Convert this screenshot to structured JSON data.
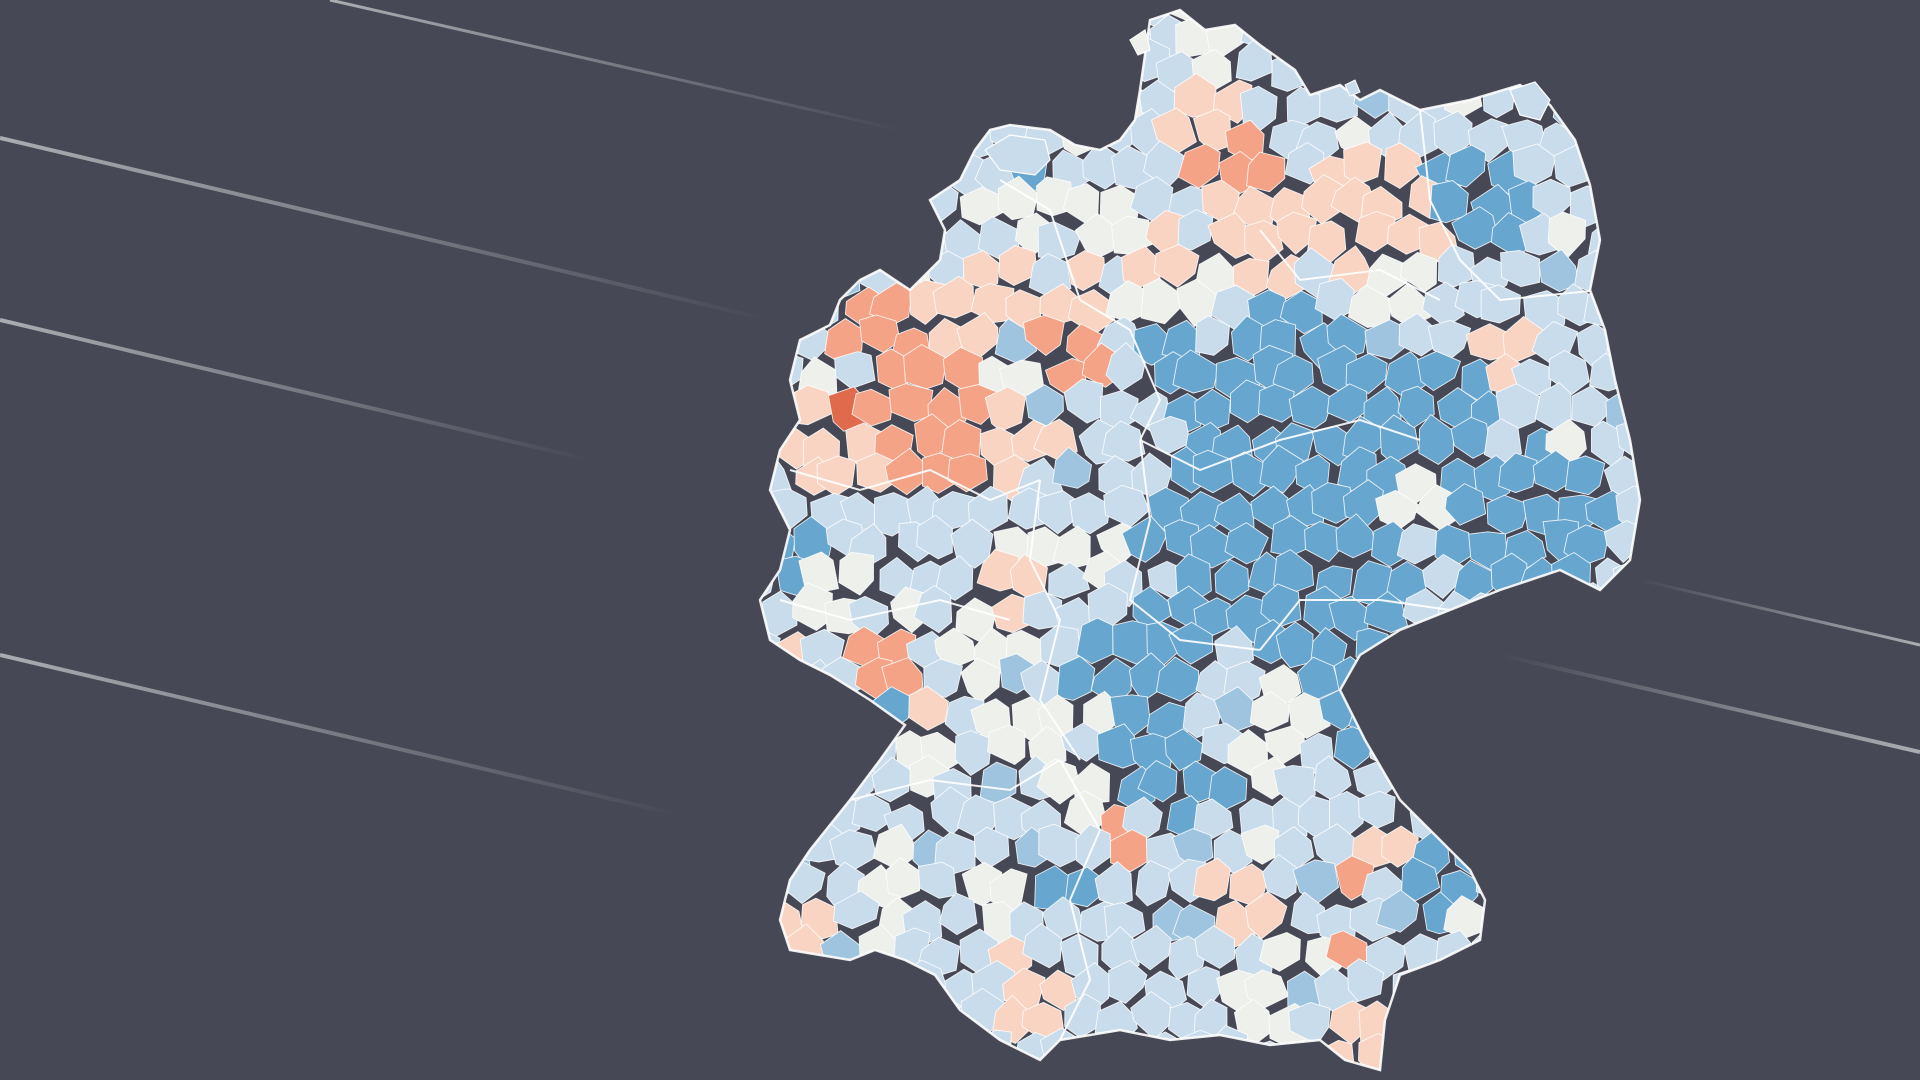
{
  "map": {
    "country": "Germany",
    "type": "choropleth",
    "region_level": "districts",
    "background": "#464855",
    "border_color": "#ffffff",
    "color_scale": [
      "#a50f15",
      "#e06a4c",
      "#f4a386",
      "#f9d4c2",
      "#eef0ec",
      "#c9dcec",
      "#9fc4df",
      "#66a6cf"
    ],
    "legend": null,
    "labels": null
  }
}
